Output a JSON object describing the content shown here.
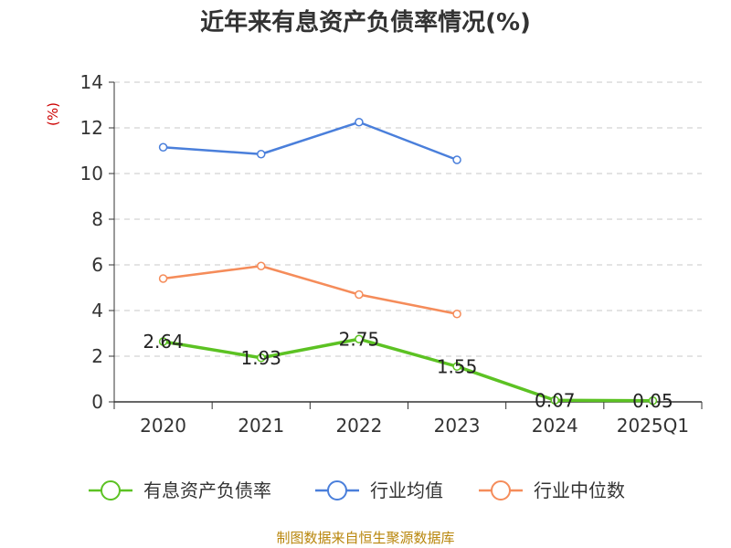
{
  "chart_data": {
    "type": "line",
    "title": "近年来有息资产负债率情况(%)",
    "ylabel": "(%)",
    "xlabel": "",
    "categories": [
      "2020",
      "2021",
      "2022",
      "2023",
      "2024",
      "2025Q1"
    ],
    "ylim": [
      0,
      14
    ],
    "yticks": [
      0,
      2,
      4,
      6,
      8,
      10,
      12,
      14
    ],
    "grid": true,
    "legend_position": "bottom",
    "series": [
      {
        "name": "有息资产负债率",
        "color": "#5cc223",
        "values": [
          2.64,
          1.93,
          2.75,
          1.55,
          0.07,
          0.05
        ],
        "labels": [
          "2.64",
          "1.93",
          "2.75",
          "1.55",
          "0.07",
          "0.05"
        ]
      },
      {
        "name": "行业均值",
        "color": "#4a7fdb",
        "values": [
          11.15,
          10.85,
          12.25,
          10.6,
          null,
          null
        ]
      },
      {
        "name": "行业中位数",
        "color": "#f58c5a",
        "values": [
          5.4,
          5.95,
          4.7,
          3.85,
          null,
          null
        ]
      }
    ],
    "source": "制图数据来自恒生聚源数据库"
  }
}
